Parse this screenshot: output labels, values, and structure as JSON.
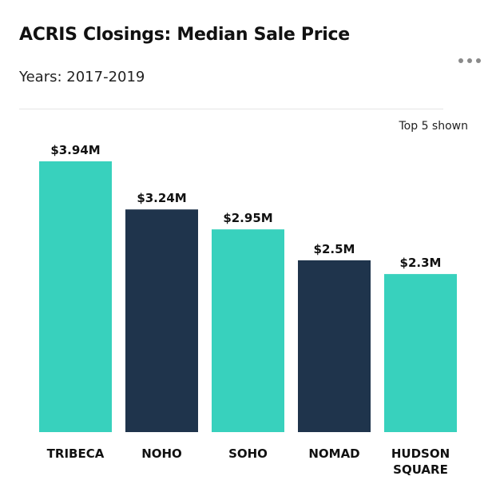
{
  "header": {
    "title": "ACRIS Closings: Median Sale Price",
    "subtitle": "Years: 2017-2019",
    "note": "Top 5 shown",
    "more_icon": "more-horizontal-icon"
  },
  "colors": {
    "teal": "#38d1bd",
    "navy": "#1f344c",
    "divider": "#e6e6e6",
    "menu_dots": "#8a8a8a"
  },
  "chart_data": {
    "type": "bar",
    "title": "ACRIS Closings: Median Sale Price",
    "subtitle": "Years: 2017-2019",
    "categories": [
      "TRIBECA",
      "NOHO",
      "SOHO",
      "NOMAD",
      "HUDSON SQUARE"
    ],
    "category_lines": [
      [
        "TRIBECA"
      ],
      [
        "NOHO"
      ],
      [
        "SOHO"
      ],
      [
        "NOMAD"
      ],
      [
        "HUDSON",
        "SQUARE"
      ]
    ],
    "values": [
      3.94,
      3.24,
      2.95,
      2.5,
      2.3
    ],
    "value_labels": [
      "$3.94M",
      "$3.24M",
      "$2.95M",
      "$2.5M",
      "$2.3M"
    ],
    "bar_colors": [
      "#38d1bd",
      "#1f344c",
      "#38d1bd",
      "#1f344c",
      "#38d1bd"
    ],
    "unit": "$M",
    "ylim": [
      0,
      3.94
    ],
    "grid": false,
    "legend": "none",
    "xlabel": "",
    "ylabel": ""
  }
}
